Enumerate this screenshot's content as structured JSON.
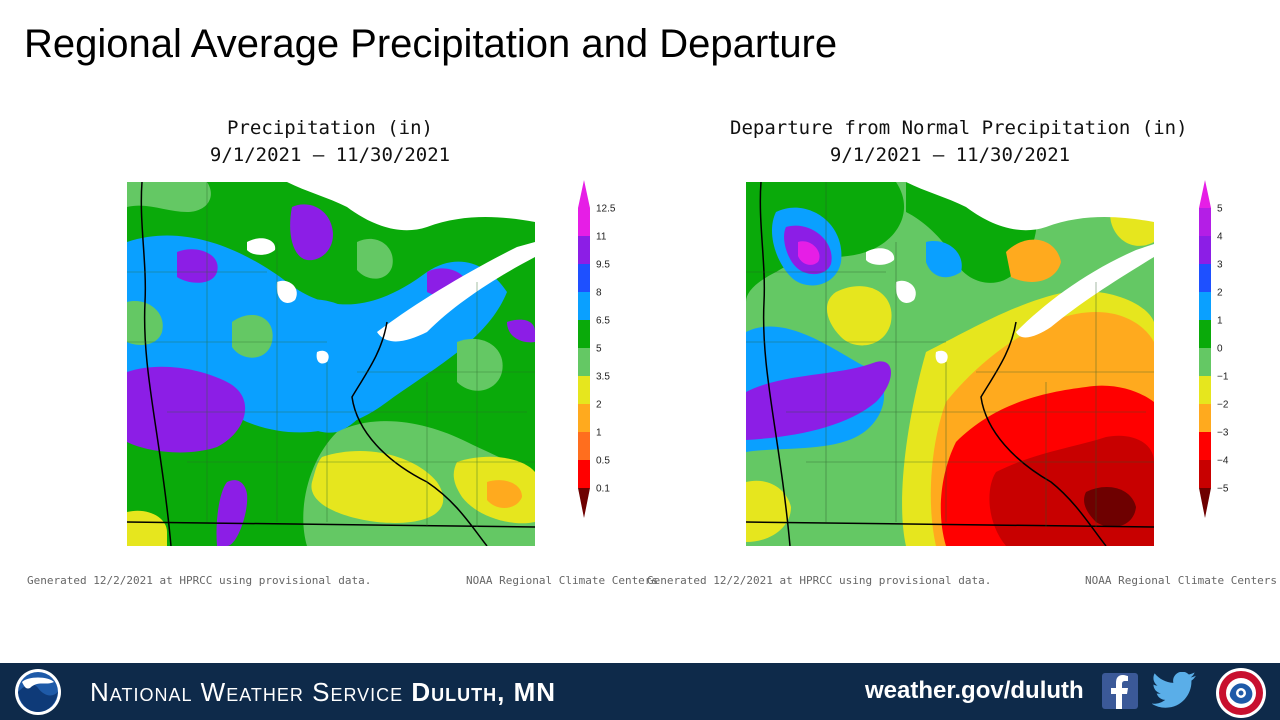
{
  "title": "Regional Average Precipitation and Departure",
  "panels": {
    "precip": {
      "title": "Precipitation (in)",
      "date_range": "9/1/2021 – 11/30/2021",
      "legend_labels": [
        "12.5",
        "11",
        "9.5",
        "8",
        "6.5",
        "5",
        "3.5",
        "2",
        "1",
        "0.5",
        "0.1"
      ],
      "legend_colors": [
        "#e61ee6",
        "#8c1ee6",
        "#1e50ff",
        "#0aa0ff",
        "#0aaa0a",
        "#64c864",
        "#e6e61e",
        "#ffaa1e",
        "#ff6e1e",
        "#ff0000",
        "#a00000",
        "#6e0000"
      ],
      "footnote_left": "Generated 12/2/2021 at HPRCC using provisional data.",
      "footnote_right": "NOAA Regional Climate Centers"
    },
    "departure": {
      "title": "Departure from Normal Precipitation (in)",
      "date_range": "9/1/2021 – 11/30/2021",
      "legend_labels": [
        "5",
        "4",
        "3",
        "2",
        "1",
        "0",
        "−1",
        "−2",
        "−3",
        "−4",
        "−5"
      ],
      "legend_colors": [
        "#e61ee6",
        "#b41ee6",
        "#8c1ee6",
        "#1e50ff",
        "#0aa0ff",
        "#0aaa0a",
        "#64c864",
        "#e6e61e",
        "#ffaa1e",
        "#ff0000",
        "#c80000",
        "#6e0000"
      ],
      "footnote_left": "Generated 12/2/2021 at HPRCC using provisional data.",
      "footnote_right": "NOAA Regional Climate Centers"
    }
  },
  "footer": {
    "org_prefix": "National Weather Service",
    "office": "Duluth, MN",
    "url": "weather.gov/duluth",
    "bg_color": "#0e2a4a"
  },
  "icons": {
    "noaa": "noaa-logo",
    "facebook": "facebook-icon",
    "twitter": "twitter-icon",
    "nws": "nws-logo"
  }
}
